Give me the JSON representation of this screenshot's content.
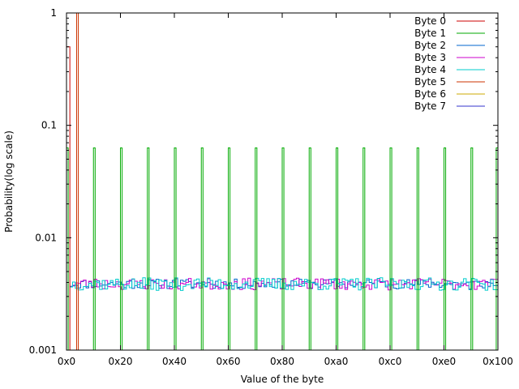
{
  "chart_data": {
    "type": "line",
    "step": true,
    "title": "",
    "xlabel": "Value of the byte",
    "ylabel": "Probability(log scale)",
    "xlim": [
      0,
      256
    ],
    "ylim": [
      0.001,
      1
    ],
    "yscale": "log",
    "grid": false,
    "legend_position": "top-right",
    "x_ticks": [
      {
        "value": 0,
        "label": "0x0"
      },
      {
        "value": 32,
        "label": "0x20"
      },
      {
        "value": 64,
        "label": "0x40"
      },
      {
        "value": 96,
        "label": "0x60"
      },
      {
        "value": 128,
        "label": "0x80"
      },
      {
        "value": 160,
        "label": "0xa0"
      },
      {
        "value": 192,
        "label": "0xc0"
      },
      {
        "value": 224,
        "label": "0xe0"
      },
      {
        "value": 256,
        "label": "0x100"
      }
    ],
    "y_ticks": [
      {
        "value": 1,
        "label": "1"
      },
      {
        "value": 0.1,
        "label": "0.1"
      },
      {
        "value": 0.01,
        "label": "0.01"
      },
      {
        "value": 0.001,
        "label": "0.001"
      }
    ],
    "series": [
      {
        "name": "Byte 0",
        "color": "#cc0000",
        "points": [
          [
            0,
            0.001
          ],
          [
            0,
            0.5
          ],
          [
            2,
            0.5
          ],
          [
            2,
            0.001
          ]
        ]
      },
      {
        "name": "Byte 1",
        "color": "#00aa00",
        "baseline": 0.001,
        "spike_value": 0.063,
        "spike_x": [
          0,
          16,
          32,
          48,
          64,
          80,
          96,
          112,
          128,
          144,
          160,
          176,
          192,
          208,
          224,
          240,
          255
        ]
      },
      {
        "name": "Byte 2",
        "color": "#0066cc",
        "mode": "noise",
        "range": [
          2,
          256
        ],
        "mean": 0.0039,
        "jitter": 0.1,
        "seed": 11
      },
      {
        "name": "Byte 3",
        "color": "#cc00cc",
        "mode": "noise",
        "range": [
          2,
          256
        ],
        "mean": 0.0039,
        "jitter": 0.12,
        "seed": 23
      },
      {
        "name": "Byte 4",
        "color": "#00cccc",
        "mode": "noise",
        "range": [
          2,
          256
        ],
        "mean": 0.0039,
        "jitter": 0.13,
        "seed": 37
      },
      {
        "name": "Byte 5",
        "color": "#cc3300",
        "points": [
          [
            6,
            0.001
          ],
          [
            6,
            1
          ],
          [
            7,
            1
          ],
          [
            7,
            0.001
          ]
        ]
      },
      {
        "name": "Byte 6",
        "color": "#ccaa00",
        "points": []
      },
      {
        "name": "Byte 7",
        "color": "#3333cc",
        "points": []
      }
    ]
  }
}
